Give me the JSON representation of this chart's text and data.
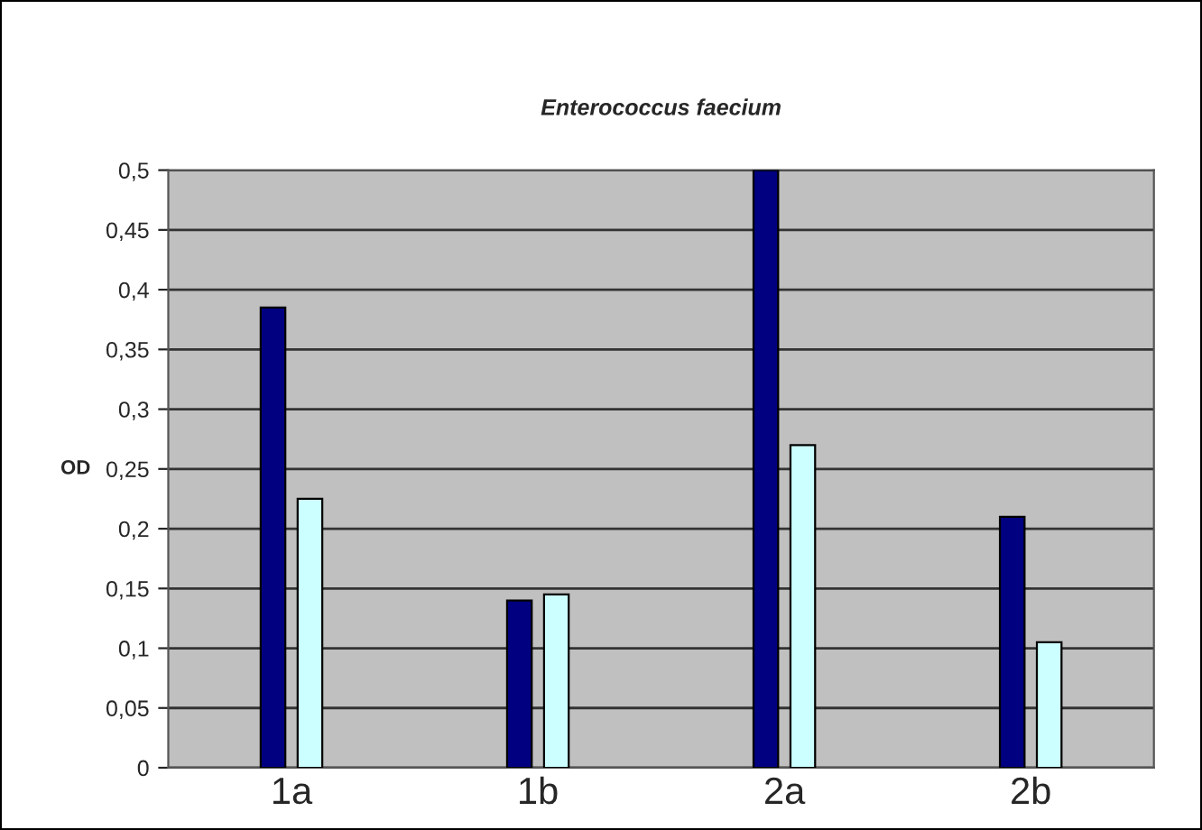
{
  "chart_data": {
    "type": "bar",
    "title": "Enterococcus faecium",
    "ylabel": "OD",
    "categories": [
      "1a",
      "1b",
      "2a",
      "2b"
    ],
    "series": [
      {
        "color": "#000080",
        "values": [
          0.385,
          0.14,
          0.5,
          0.21
        ]
      },
      {
        "color": "#ccffff",
        "values": [
          0.225,
          0.145,
          0.27,
          0.105
        ]
      }
    ],
    "ylim": [
      0,
      0.5
    ],
    "yticks": [
      {
        "value": 0,
        "label": "0"
      },
      {
        "value": 0.05,
        "label": "0,05"
      },
      {
        "value": 0.1,
        "label": "0,1"
      },
      {
        "value": 0.15,
        "label": "0,15"
      },
      {
        "value": 0.2,
        "label": "0,2"
      },
      {
        "value": 0.25,
        "label": "0,25"
      },
      {
        "value": 0.3,
        "label": "0,3"
      },
      {
        "value": 0.35,
        "label": "0,35"
      },
      {
        "value": 0.4,
        "label": "0,4"
      },
      {
        "value": 0.45,
        "label": "0,45"
      },
      {
        "value": 0.5,
        "label": "0,5"
      }
    ],
    "grid": "y",
    "legend": false
  }
}
